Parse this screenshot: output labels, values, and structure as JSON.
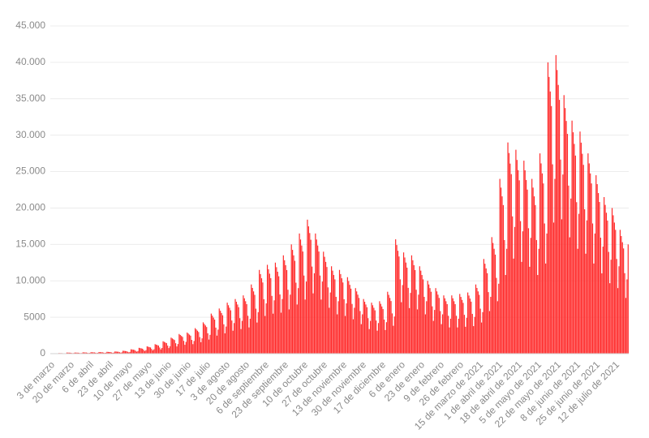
{
  "chart_data": {
    "type": "bar",
    "color": "#ff2a2a",
    "grid": true,
    "ylim": [
      0,
      45000
    ],
    "yticks": [
      0,
      5000,
      {
        "value": 10000,
        "label": "10.000"
      },
      {
        "value": 15000,
        "label": "15.000"
      },
      {
        "value": 20000,
        "label": "20.000"
      },
      {
        "value": 25000,
        "label": "25.000"
      },
      {
        "value": 30000,
        "label": "30.000"
      },
      {
        "value": 35000,
        "label": "35.000"
      },
      {
        "value": 40000,
        "label": "40.000"
      },
      {
        "value": 45000,
        "label": "45.000"
      }
    ],
    "categories": [
      "3 de marzo",
      null,
      null,
      null,
      null,
      null,
      null,
      null,
      null,
      null,
      null,
      null,
      null,
      null,
      null,
      null,
      null,
      "20 de marzo",
      null,
      null,
      null,
      null,
      null,
      null,
      null,
      null,
      null,
      null,
      null,
      null,
      null,
      null,
      null,
      null,
      "6 de abril",
      null,
      null,
      null,
      null,
      null,
      null,
      null,
      null,
      null,
      null,
      null,
      null,
      null,
      null,
      null,
      null,
      "23 de abril",
      null,
      null,
      null,
      null,
      null,
      null,
      null,
      null,
      null,
      null,
      null,
      null,
      null,
      null,
      null,
      null,
      "10 de mayo",
      null,
      null,
      null,
      null,
      null,
      null,
      null,
      null,
      null,
      null,
      null,
      null,
      null,
      null,
      null,
      null,
      "27 de mayo",
      null,
      null,
      null,
      null,
      null,
      null,
      null,
      null,
      null,
      null,
      null,
      null,
      null,
      null,
      null,
      null,
      "13 de junio",
      null,
      null,
      null,
      null,
      null,
      null,
      null,
      null,
      null,
      null,
      null,
      null,
      null,
      null,
      null,
      null,
      "30 de junio",
      null,
      null,
      null,
      null,
      null,
      null,
      null,
      null,
      null,
      null,
      null,
      null,
      null,
      null,
      null,
      null,
      "17 de julio",
      null,
      null,
      null,
      null,
      null,
      null,
      null,
      null,
      null,
      null,
      null,
      null,
      null,
      null,
      null,
      null,
      "3 de agosto",
      null,
      null,
      null,
      null,
      null,
      null,
      null,
      null,
      null,
      null,
      null,
      null,
      null,
      null,
      null,
      null,
      "20 de agosto",
      null,
      null,
      null,
      null,
      null,
      null,
      null,
      null,
      null,
      null,
      null,
      null,
      null,
      null,
      null,
      null,
      "6 de septiembre",
      null,
      null,
      null,
      null,
      null,
      null,
      null,
      null,
      null,
      null,
      null,
      null,
      null,
      null,
      null,
      null,
      "23 de septiembre",
      null,
      null,
      null,
      null,
      null,
      null,
      null,
      null,
      null,
      null,
      null,
      null,
      null,
      null,
      null,
      null,
      "10 de octubre",
      null,
      null,
      null,
      null,
      null,
      null,
      null,
      null,
      null,
      null,
      null,
      null,
      null,
      null,
      null,
      null,
      "27 de octubre",
      null,
      null,
      null,
      null,
      null,
      null,
      null,
      null,
      null,
      null,
      null,
      null,
      null,
      null,
      null,
      null,
      "13 de noviembre",
      null,
      null,
      null,
      null,
      null,
      null,
      null,
      null,
      null,
      null,
      null,
      null,
      null,
      null,
      null,
      null,
      "30 de noviembre",
      null,
      null,
      null,
      null,
      null,
      null,
      null,
      null,
      null,
      null,
      null,
      null,
      null,
      null,
      null,
      null,
      "17 de diciembre",
      null,
      null,
      null,
      null,
      null,
      null,
      null,
      null,
      null,
      null,
      null,
      null,
      null,
      null,
      null,
      null,
      "6 de enero",
      null,
      null,
      null,
      null,
      null,
      null,
      null,
      null,
      null,
      null,
      null,
      null,
      null,
      null,
      null,
      null,
      "23 de enero",
      null,
      null,
      null,
      null,
      null,
      null,
      null,
      null,
      null,
      null,
      null,
      null,
      null,
      null,
      null,
      null,
      "9 de febrero",
      null,
      null,
      null,
      null,
      null,
      null,
      null,
      null,
      null,
      null,
      null,
      null,
      null,
      null,
      null,
      null,
      "26 de febrero",
      null,
      null,
      null,
      null,
      null,
      null,
      null,
      null,
      null,
      null,
      null,
      null,
      null,
      null,
      null,
      null,
      "15 de marzo de 2021",
      null,
      null,
      null,
      null,
      null,
      null,
      null,
      null,
      null,
      null,
      null,
      null,
      null,
      null,
      null,
      null,
      "1 de abril de 2021",
      null,
      null,
      null,
      null,
      null,
      null,
      null,
      null,
      null,
      null,
      null,
      null,
      null,
      null,
      null,
      null,
      "18 de abril de 2021",
      null,
      null,
      null,
      null,
      null,
      null,
      null,
      null,
      null,
      null,
      null,
      null,
      null,
      null,
      null,
      null,
      "5 de mayo de 2021",
      null,
      null,
      null,
      null,
      null,
      null,
      null,
      null,
      null,
      null,
      null,
      null,
      null,
      null,
      null,
      null,
      "22 de mayo de 2021",
      null,
      null,
      null,
      null,
      null,
      null,
      null,
      null,
      null,
      null,
      null,
      null,
      null,
      null,
      null,
      null,
      "8 de junio de 2021",
      null,
      null,
      null,
      null,
      null,
      null,
      null,
      null,
      null,
      null,
      null,
      null,
      null,
      null,
      null,
      null,
      "25 de junio de 2021",
      null,
      null,
      null,
      null,
      null,
      null,
      null,
      null,
      null,
      null,
      null,
      null,
      null,
      null,
      null,
      null,
      "12 de julio de 2021",
      null,
      null,
      null,
      null,
      null,
      null,
      null,
      null,
      null,
      null,
      null
    ],
    "values": [
      30,
      28,
      27,
      25,
      20,
      14,
      18,
      80,
      76,
      72,
      68,
      52,
      36,
      48,
      150,
      143,
      135,
      128,
      98,
      68,
      90,
      150,
      143,
      135,
      128,
      98,
      68,
      90,
      180,
      171,
      162,
      153,
      117,
      81,
      108,
      200,
      190,
      180,
      170,
      130,
      90,
      120,
      220,
      209,
      198,
      187,
      143,
      99,
      132,
      250,
      238,
      225,
      213,
      163,
      113,
      150,
      300,
      285,
      270,
      255,
      195,
      135,
      180,
      400,
      380,
      360,
      340,
      260,
      180,
      240,
      600,
      570,
      540,
      510,
      390,
      270,
      360,
      800,
      760,
      720,
      680,
      520,
      360,
      480,
      1000,
      950,
      900,
      850,
      650,
      450,
      600,
      1300,
      1235,
      1170,
      1105,
      845,
      585,
      780,
      1700,
      1615,
      1530,
      1445,
      1105,
      765,
      1020,
      2200,
      2090,
      1980,
      1870,
      1430,
      990,
      1320,
      2700,
      2565,
      2430,
      2295,
      1755,
      1215,
      1620,
      2900,
      2755,
      2610,
      2465,
      1885,
      1305,
      1740,
      3500,
      3325,
      3150,
      2975,
      2275,
      1575,
      2100,
      4300,
      4085,
      3870,
      3655,
      2795,
      1935,
      2580,
      5500,
      5225,
      4950,
      4675,
      3575,
      2475,
      3300,
      6200,
      5890,
      5580,
      5270,
      4030,
      2790,
      3720,
      7000,
      6650,
      6300,
      5950,
      4550,
      3150,
      4200,
      7500,
      7125,
      6750,
      6375,
      4875,
      3375,
      4500,
      8000,
      7600,
      7200,
      6800,
      5200,
      3600,
      4800,
      9500,
      9025,
      8550,
      8075,
      6175,
      4275,
      5700,
      11500,
      10925,
      10350,
      9775,
      7475,
      5175,
      6900,
      12200,
      11590,
      10980,
      10370,
      7930,
      5490,
      7320,
      12500,
      11875,
      11250,
      10625,
      8125,
      5625,
      7500,
      13500,
      12825,
      12150,
      11475,
      8775,
      6075,
      8100,
      15000,
      14250,
      13500,
      12750,
      9750,
      6750,
      9000,
      16500,
      15675,
      14850,
      14025,
      10725,
      7425,
      9900,
      18400,
      17480,
      16560,
      15640,
      11960,
      8280,
      11040,
      16500,
      15675,
      14850,
      14025,
      10725,
      7425,
      9900,
      14000,
      13300,
      12600,
      11900,
      9100,
      6300,
      8400,
      12000,
      11400,
      10800,
      10200,
      7800,
      5400,
      7200,
      11500,
      10925,
      10350,
      9775,
      7475,
      5175,
      6900,
      10500,
      9975,
      9450,
      8925,
      6825,
      4725,
      6300,
      9000,
      8550,
      8100,
      7650,
      5850,
      4050,
      5400,
      7500,
      7125,
      6750,
      6375,
      4875,
      3375,
      4500,
      7000,
      6650,
      6300,
      5950,
      4550,
      3150,
      4200,
      7200,
      6840,
      6480,
      6120,
      4680,
      3240,
      4320,
      8500,
      8075,
      7650,
      7225,
      5525,
      3825,
      5100,
      15700,
      14915,
      14130,
      13345,
      10205,
      7065,
      9420,
      13900,
      13205,
      12510,
      11815,
      9035,
      6255,
      8340,
      13500,
      12825,
      12150,
      11475,
      8775,
      6075,
      8100,
      12000,
      11400,
      10800,
      10200,
      7800,
      5400,
      7200,
      10000,
      9500,
      9000,
      8500,
      6500,
      4500,
      6000,
      9000,
      8550,
      8100,
      7650,
      5850,
      4050,
      5400,
      8000,
      7600,
      7200,
      6800,
      5200,
      3600,
      4800,
      8000,
      7600,
      7200,
      6800,
      5200,
      3600,
      4800,
      8200,
      7790,
      7380,
      6970,
      5330,
      3690,
      4920,
      8400,
      7980,
      7560,
      7140,
      5460,
      3780,
      5040,
      9500,
      9025,
      8550,
      8075,
      6175,
      4275,
      5700,
      13000,
      12350,
      11700,
      11050,
      8450,
      5850,
      7800,
      16000,
      15200,
      14400,
      13600,
      10400,
      7200,
      9600,
      24000,
      22800,
      21600,
      20400,
      15600,
      10800,
      14400,
      29000,
      27550,
      26100,
      24650,
      18850,
      13050,
      17400,
      28000,
      26600,
      25200,
      23800,
      18200,
      12600,
      16800,
      26500,
      25175,
      23850,
      22525,
      17225,
      11925,
      15900,
      24000,
      22800,
      21600,
      20400,
      15600,
      10800,
      14400,
      27500,
      26125,
      24750,
      23375,
      17875,
      12375,
      16500,
      40000,
      38000,
      36000,
      34000,
      26000,
      18000,
      24000,
      41000,
      38950,
      36900,
      34850,
      26650,
      18450,
      24600,
      35500,
      33725,
      31950,
      30175,
      23075,
      15975,
      21300,
      32000,
      30400,
      28800,
      27200,
      20800,
      14400,
      19200,
      30500,
      28975,
      27450,
      25925,
      19825,
      13725,
      18300,
      27500,
      26125,
      24750,
      23375,
      17875,
      12375,
      16500,
      24500,
      23275,
      22050,
      20825,
      15925,
      11025,
      14700,
      21500,
      20425,
      19350,
      18275,
      13975,
      9675,
      12900,
      20000,
      19000,
      18000,
      17000,
      13000,
      9000,
      12000,
      17000,
      16150,
      15300,
      14450,
      11050,
      7650,
      10200,
      15000
    ]
  }
}
